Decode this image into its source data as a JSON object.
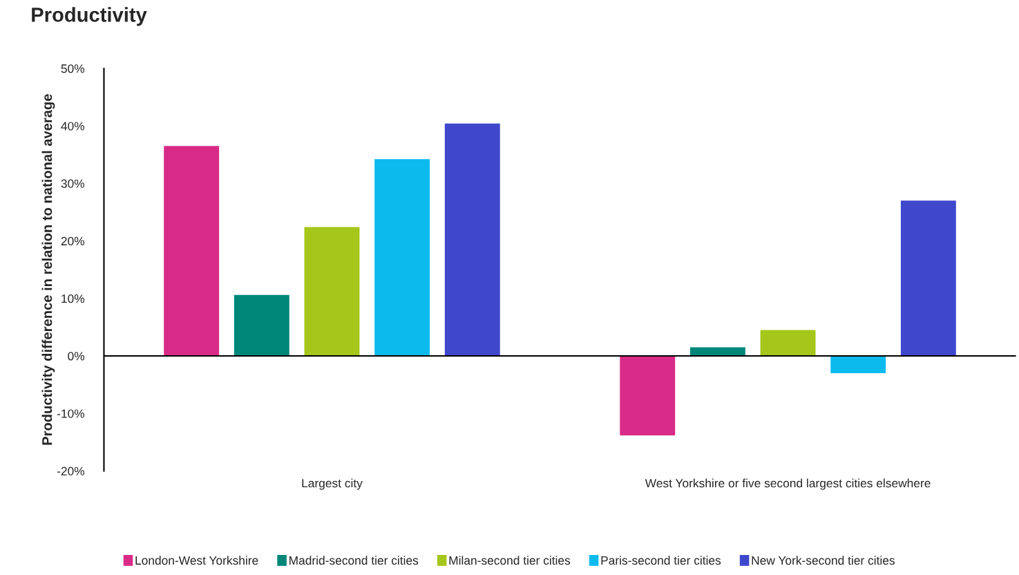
{
  "chart_data": {
    "type": "bar",
    "title": "Productivity",
    "ylabel": "Productivity difference in relation to national average",
    "categories": [
      "Largest city",
      "West Yorkshire or five second largest cities elsewhere"
    ],
    "series": [
      {
        "name": "London-West Yorkshire",
        "color": "#d82b87",
        "values": [
          36.6,
          -13.9
        ]
      },
      {
        "name": "Madrid-second tier cities",
        "color": "#00877a",
        "values": [
          10.7,
          1.6
        ]
      },
      {
        "name": "Milan-second tier cities",
        "color": "#a5c61a",
        "values": [
          22.5,
          4.6
        ]
      },
      {
        "name": "Paris-second tier cities",
        "color": "#0dbaee",
        "values": [
          34.3,
          -3.1
        ]
      },
      {
        "name": "New York-second tier cities",
        "color": "#3f48cc",
        "values": [
          40.5,
          27.1
        ]
      }
    ],
    "ylim": [
      -20,
      50
    ],
    "yticks": [
      {
        "value": -20,
        "label": "-20%"
      },
      {
        "value": -10,
        "label": "-10%"
      },
      {
        "value": 0,
        "label": "0%"
      },
      {
        "value": 10,
        "label": "10%"
      },
      {
        "value": 20,
        "label": "20%"
      },
      {
        "value": 30,
        "label": "30%"
      },
      {
        "value": 40,
        "label": "40%"
      },
      {
        "value": 50,
        "label": "50%"
      }
    ],
    "ref_lines": [
      {
        "axis": "y",
        "value": 0,
        "color": "#000000"
      }
    ],
    "grid": false,
    "legend": "bottom"
  }
}
